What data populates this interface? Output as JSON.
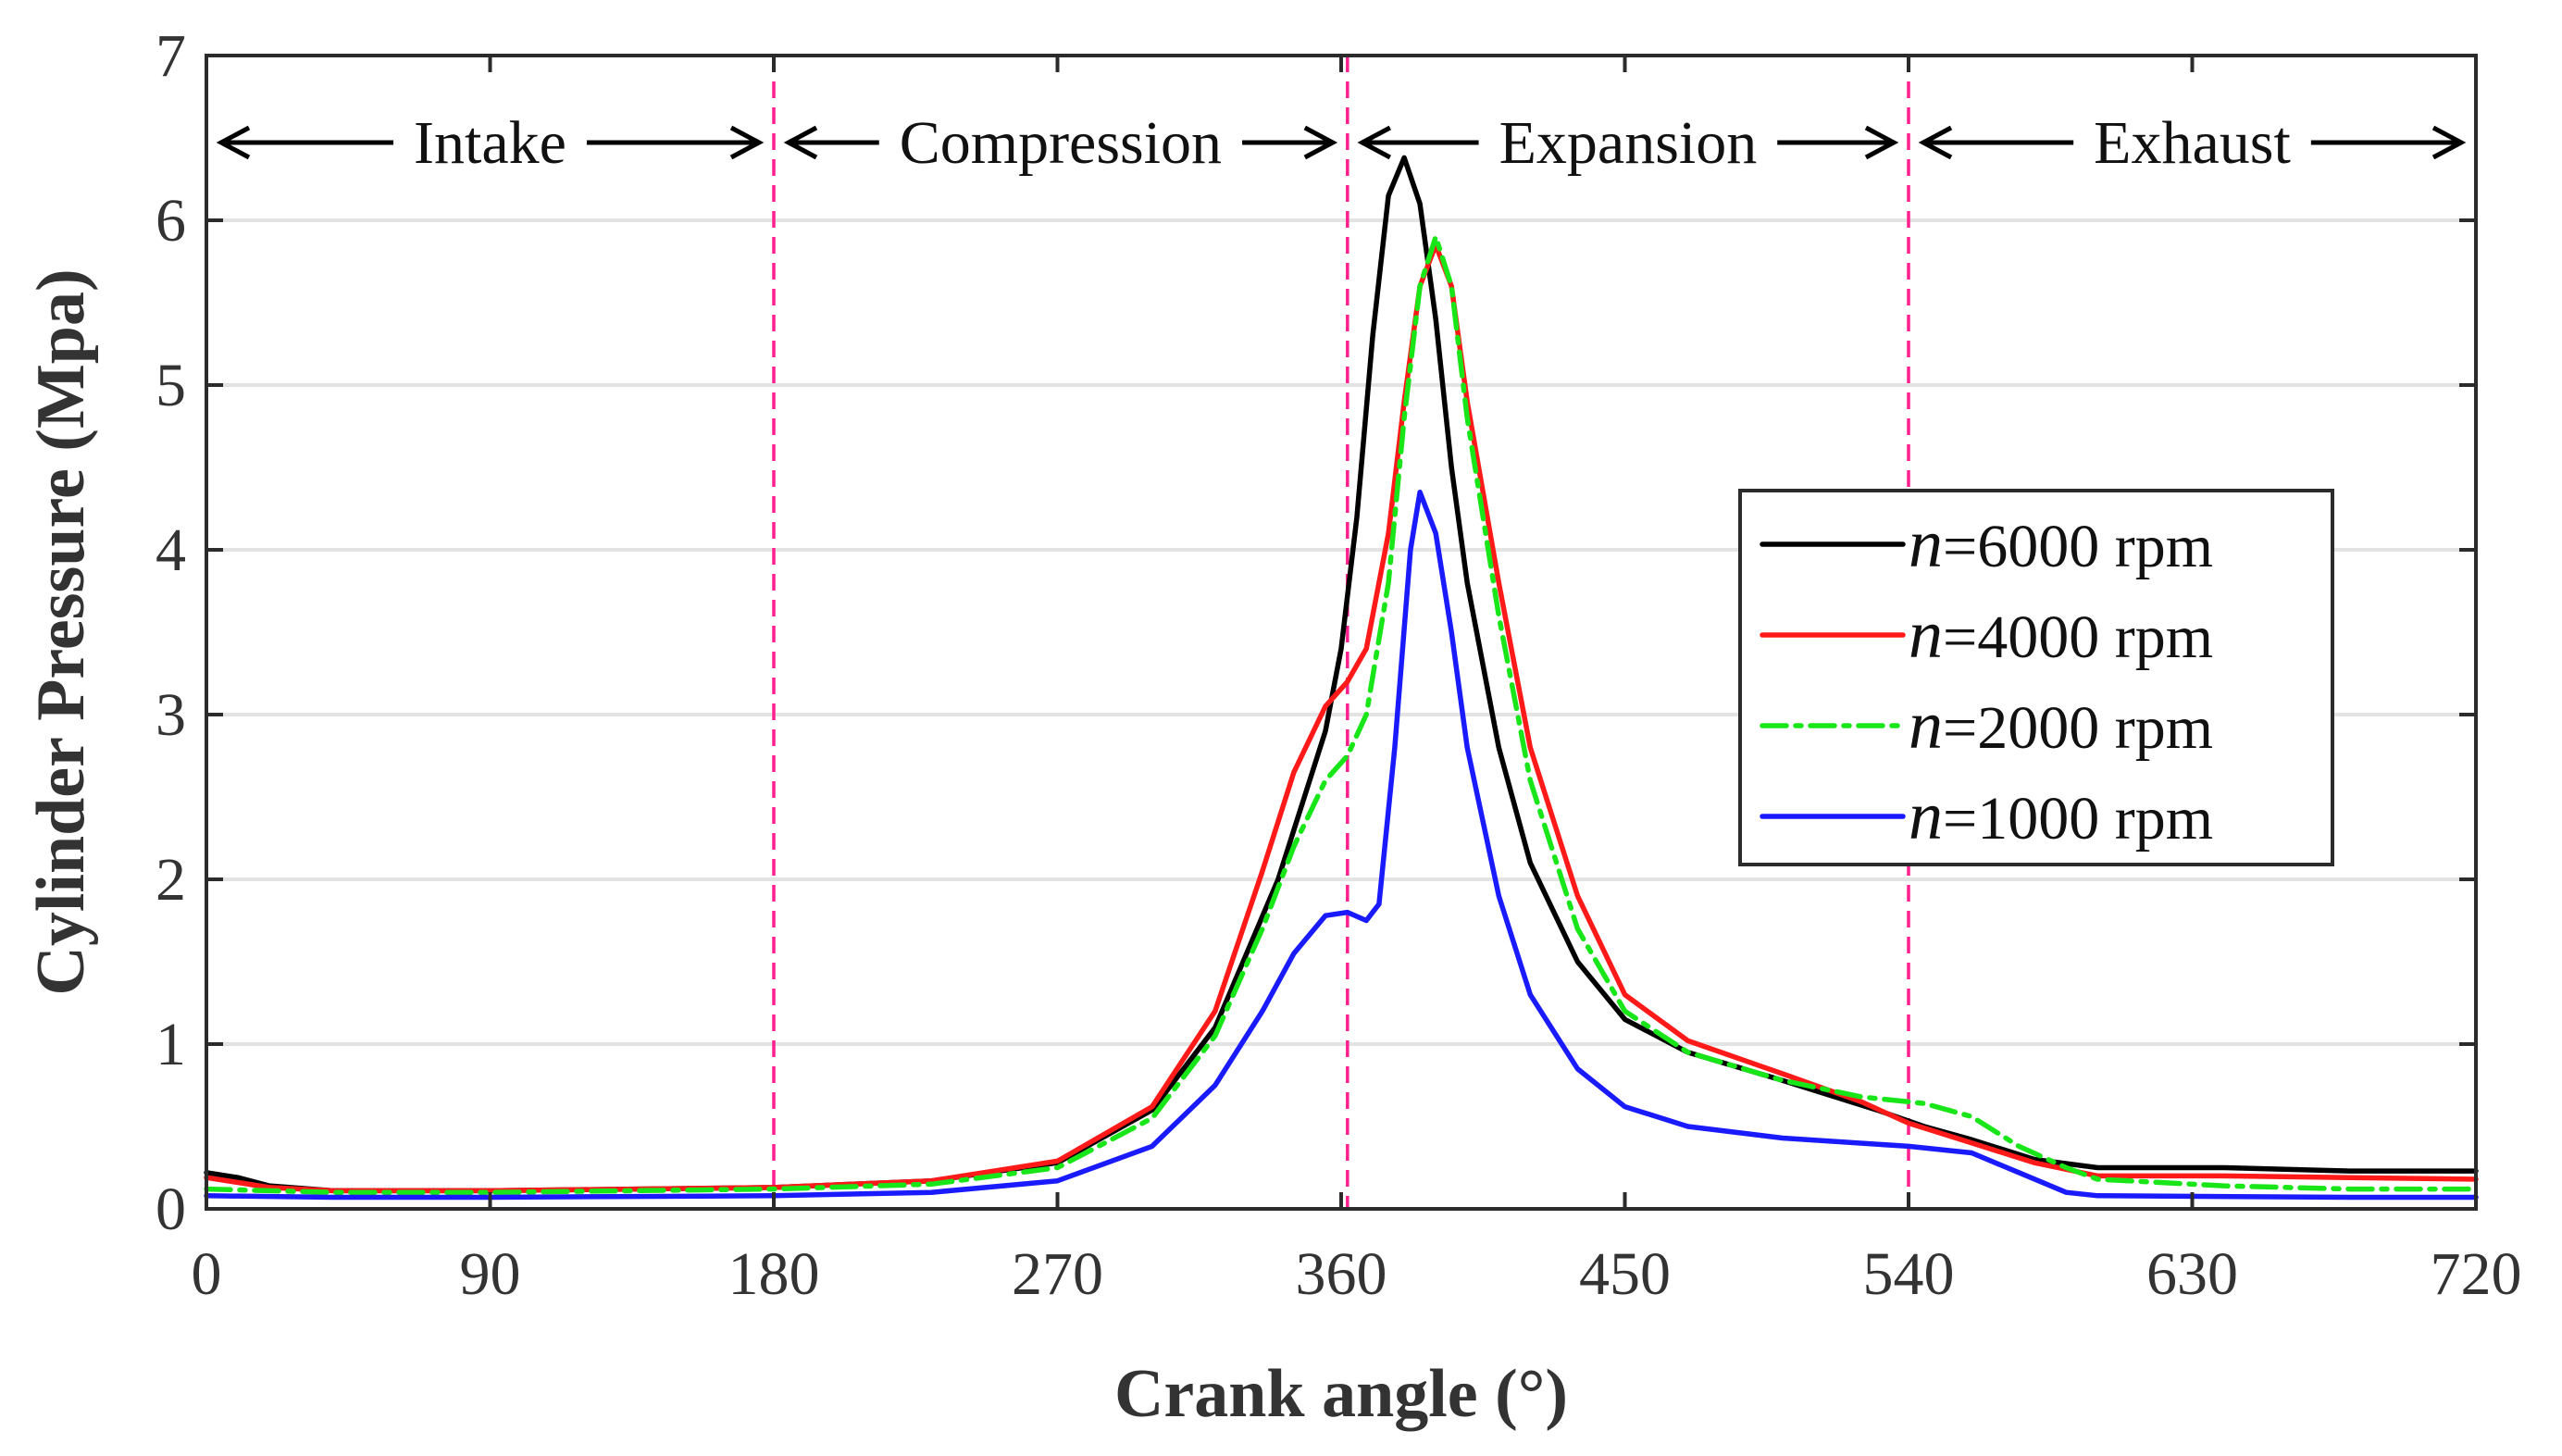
{
  "chart_data": {
    "type": "line",
    "title": "",
    "xlabel": "Crank angle (°)",
    "ylabel": "Cylinder Pressure (Mpa)",
    "xlim": [
      0,
      720
    ],
    "ylim": [
      0,
      7
    ],
    "xticks": [
      0,
      90,
      180,
      270,
      360,
      450,
      540,
      630,
      720
    ],
    "yticks": [
      0,
      1,
      2,
      3,
      4,
      5,
      6,
      7
    ],
    "grid": "horizontal",
    "legend_position": "right",
    "phases": [
      {
        "label": "Intake",
        "start": 0,
        "end": 180
      },
      {
        "label": "Compression",
        "start": 180,
        "end": 362
      },
      {
        "label": "Expansion",
        "start": 362,
        "end": 540
      },
      {
        "label": "Exhaust",
        "start": 540,
        "end": 720
      }
    ],
    "phase_dividers": [
      180,
      362,
      540
    ],
    "series": [
      {
        "name": "n=6000 rpm",
        "legend_symbol": "n",
        "legend_value": "=6000 rpm",
        "color": "#000000",
        "dash": "solid",
        "points": [
          [
            0,
            0.22
          ],
          [
            10,
            0.19
          ],
          [
            20,
            0.14
          ],
          [
            40,
            0.11
          ],
          [
            90,
            0.11
          ],
          [
            180,
            0.13
          ],
          [
            230,
            0.17
          ],
          [
            270,
            0.28
          ],
          [
            300,
            0.6
          ],
          [
            320,
            1.1
          ],
          [
            340,
            2.0
          ],
          [
            355,
            2.9
          ],
          [
            360,
            3.4
          ],
          [
            365,
            4.2
          ],
          [
            370,
            5.3
          ],
          [
            375,
            6.15
          ],
          [
            380,
            6.38
          ],
          [
            385,
            6.1
          ],
          [
            390,
            5.4
          ],
          [
            395,
            4.5
          ],
          [
            400,
            3.8
          ],
          [
            410,
            2.8
          ],
          [
            420,
            2.1
          ],
          [
            435,
            1.5
          ],
          [
            450,
            1.15
          ],
          [
            470,
            0.95
          ],
          [
            500,
            0.78
          ],
          [
            530,
            0.6
          ],
          [
            545,
            0.5
          ],
          [
            560,
            0.42
          ],
          [
            580,
            0.3
          ],
          [
            600,
            0.25
          ],
          [
            640,
            0.25
          ],
          [
            680,
            0.23
          ],
          [
            720,
            0.23
          ]
        ]
      },
      {
        "name": "n=4000 rpm",
        "legend_symbol": "n",
        "legend_value": "=4000 rpm",
        "color": "#ff1a1a",
        "dash": "solid",
        "points": [
          [
            0,
            0.19
          ],
          [
            10,
            0.16
          ],
          [
            20,
            0.13
          ],
          [
            40,
            0.11
          ],
          [
            90,
            0.11
          ],
          [
            180,
            0.13
          ],
          [
            230,
            0.17
          ],
          [
            270,
            0.29
          ],
          [
            300,
            0.62
          ],
          [
            320,
            1.2
          ],
          [
            335,
            2.05
          ],
          [
            345,
            2.65
          ],
          [
            355,
            3.05
          ],
          [
            362,
            3.2
          ],
          [
            368,
            3.4
          ],
          [
            375,
            4.1
          ],
          [
            380,
            4.9
          ],
          [
            385,
            5.6
          ],
          [
            390,
            5.85
          ],
          [
            395,
            5.6
          ],
          [
            400,
            4.9
          ],
          [
            410,
            3.8
          ],
          [
            420,
            2.8
          ],
          [
            435,
            1.9
          ],
          [
            450,
            1.3
          ],
          [
            470,
            1.02
          ],
          [
            500,
            0.82
          ],
          [
            525,
            0.65
          ],
          [
            540,
            0.52
          ],
          [
            560,
            0.4
          ],
          [
            580,
            0.28
          ],
          [
            600,
            0.2
          ],
          [
            640,
            0.2
          ],
          [
            680,
            0.19
          ],
          [
            720,
            0.18
          ]
        ]
      },
      {
        "name": "n=2000 rpm",
        "legend_symbol": "n",
        "legend_value": "=2000 rpm",
        "color": "#19e619",
        "dash": "dashdot",
        "points": [
          [
            0,
            0.12
          ],
          [
            20,
            0.11
          ],
          [
            40,
            0.1
          ],
          [
            90,
            0.1
          ],
          [
            180,
            0.12
          ],
          [
            230,
            0.15
          ],
          [
            270,
            0.25
          ],
          [
            300,
            0.55
          ],
          [
            320,
            1.05
          ],
          [
            335,
            1.7
          ],
          [
            345,
            2.2
          ],
          [
            355,
            2.6
          ],
          [
            362,
            2.75
          ],
          [
            368,
            3.0
          ],
          [
            375,
            3.8
          ],
          [
            380,
            4.8
          ],
          [
            385,
            5.6
          ],
          [
            390,
            5.9
          ],
          [
            395,
            5.6
          ],
          [
            400,
            4.8
          ],
          [
            410,
            3.6
          ],
          [
            420,
            2.6
          ],
          [
            435,
            1.7
          ],
          [
            450,
            1.2
          ],
          [
            470,
            0.95
          ],
          [
            500,
            0.78
          ],
          [
            525,
            0.68
          ],
          [
            545,
            0.64
          ],
          [
            560,
            0.56
          ],
          [
            575,
            0.38
          ],
          [
            590,
            0.25
          ],
          [
            600,
            0.18
          ],
          [
            640,
            0.14
          ],
          [
            680,
            0.12
          ],
          [
            720,
            0.12
          ]
        ]
      },
      {
        "name": "n=1000 rpm",
        "legend_symbol": "n",
        "legend_value": "=1000 rpm",
        "color": "#1a1aff",
        "dash": "solid",
        "points": [
          [
            0,
            0.08
          ],
          [
            40,
            0.07
          ],
          [
            90,
            0.07
          ],
          [
            180,
            0.08
          ],
          [
            230,
            0.1
          ],
          [
            270,
            0.17
          ],
          [
            300,
            0.38
          ],
          [
            320,
            0.75
          ],
          [
            335,
            1.2
          ],
          [
            345,
            1.55
          ],
          [
            355,
            1.78
          ],
          [
            362,
            1.8
          ],
          [
            368,
            1.75
          ],
          [
            372,
            1.85
          ],
          [
            377,
            2.8
          ],
          [
            382,
            4.0
          ],
          [
            385,
            4.35
          ],
          [
            390,
            4.1
          ],
          [
            395,
            3.5
          ],
          [
            400,
            2.8
          ],
          [
            410,
            1.9
          ],
          [
            420,
            1.3
          ],
          [
            435,
            0.85
          ],
          [
            450,
            0.62
          ],
          [
            470,
            0.5
          ],
          [
            500,
            0.43
          ],
          [
            540,
            0.38
          ],
          [
            560,
            0.34
          ],
          [
            575,
            0.22
          ],
          [
            590,
            0.1
          ],
          [
            600,
            0.08
          ],
          [
            680,
            0.07
          ],
          [
            720,
            0.07
          ]
        ]
      }
    ]
  }
}
